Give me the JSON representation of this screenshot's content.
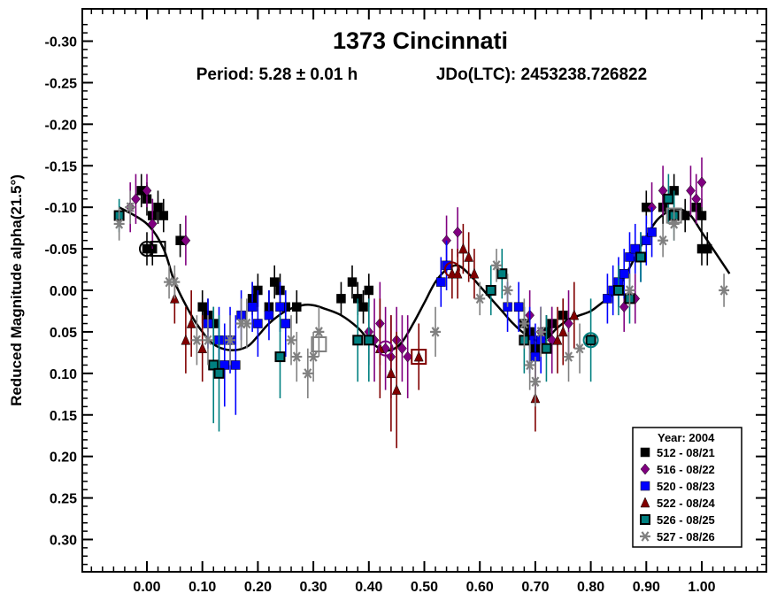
{
  "chart_data": {
    "type": "scatter",
    "title": "1373 Cincinnati",
    "subtitle_period": "Period: 5.28 ± 0.01 h",
    "subtitle_epoch": "JDo(LTC): 2453238.726822",
    "ylabel": "Reduced Magnitude alpha(21.5°)",
    "xlabel": "",
    "xlim": [
      -0.12,
      1.12
    ],
    "ylim": [
      -0.32,
      0.34
    ],
    "y_inverted": true,
    "grid": false,
    "x_ticks": [
      "0.00",
      "0.10",
      "0.20",
      "0.30",
      "0.40",
      "0.50",
      "0.60",
      "0.70",
      "0.80",
      "0.90",
      "1.00"
    ],
    "y_ticks": [
      "-0.30",
      "-0.25",
      "-0.20",
      "-0.15",
      "-0.10",
      "-0.05",
      "0.00",
      "0.05",
      "0.10",
      "0.15",
      "0.20",
      "0.25",
      "0.30"
    ],
    "legend_title": "Year: 2004",
    "legend_position": "bottom-right",
    "series": [
      {
        "name": "512 - 08/21",
        "marker": "square",
        "color": "#000000",
        "points": [
          [
            -0.01,
            -0.12
          ],
          [
            0.0,
            -0.11
          ],
          [
            0.01,
            -0.09
          ],
          [
            0.02,
            -0.1
          ],
          [
            0.03,
            -0.09
          ],
          [
            0.0,
            -0.05
          ],
          [
            0.01,
            -0.05
          ],
          [
            0.06,
            -0.06
          ],
          [
            0.1,
            0.02
          ],
          [
            0.11,
            0.03
          ],
          [
            0.12,
            0.04
          ],
          [
            0.19,
            0.01
          ],
          [
            0.2,
            0.0
          ],
          [
            0.22,
            0.02
          ],
          [
            0.23,
            -0.01
          ],
          [
            0.24,
            0.0
          ],
          [
            0.25,
            0.02
          ],
          [
            0.27,
            0.02
          ],
          [
            0.35,
            0.01
          ],
          [
            0.37,
            -0.01
          ],
          [
            0.38,
            0.01
          ],
          [
            0.39,
            0.02
          ],
          [
            0.4,
            0.0
          ],
          [
            0.68,
            0.04
          ],
          [
            0.69,
            0.05
          ],
          [
            0.7,
            0.07
          ],
          [
            0.72,
            0.05
          ],
          [
            0.73,
            0.04
          ],
          [
            0.75,
            0.03
          ],
          [
            0.9,
            -0.1
          ],
          [
            0.93,
            -0.1
          ],
          [
            0.95,
            -0.12
          ],
          [
            0.97,
            -0.09
          ],
          [
            0.99,
            -0.1
          ],
          [
            1.0,
            -0.09
          ],
          [
            1.0,
            -0.05
          ],
          [
            1.01,
            -0.05
          ]
        ],
        "errors": [
          0.02,
          0.02,
          0.02,
          0.02,
          0.02,
          0.02,
          0.02,
          0.02,
          0.02,
          0.02,
          0.02,
          0.02,
          0.02,
          0.02,
          0.02,
          0.02,
          0.02,
          0.02,
          0.02,
          0.02,
          0.02,
          0.02,
          0.02,
          0.02,
          0.02,
          0.02,
          0.02,
          0.02,
          0.02,
          0.02,
          0.02,
          0.02,
          0.02,
          0.02,
          0.02,
          0.02,
          0.02
        ]
      },
      {
        "name": "516 - 08/22",
        "marker": "diamond",
        "color": "#800080",
        "points": [
          [
            -0.03,
            -0.1
          ],
          [
            -0.02,
            -0.11
          ],
          [
            0.0,
            -0.12
          ],
          [
            0.01,
            -0.08
          ],
          [
            0.07,
            -0.06
          ],
          [
            0.4,
            0.05
          ],
          [
            0.41,
            0.06
          ],
          [
            0.42,
            0.04
          ],
          [
            0.43,
            0.07
          ],
          [
            0.44,
            0.08
          ],
          [
            0.45,
            0.06
          ],
          [
            0.46,
            0.07
          ],
          [
            0.47,
            0.08
          ],
          [
            0.54,
            -0.06
          ],
          [
            0.56,
            -0.07
          ],
          [
            0.69,
            0.03
          ],
          [
            0.71,
            0.05
          ],
          [
            0.73,
            0.06
          ],
          [
            0.76,
            0.04
          ],
          [
            0.86,
            0.02
          ],
          [
            0.88,
            0.01
          ],
          [
            0.91,
            -0.1
          ],
          [
            0.93,
            -0.12
          ],
          [
            0.98,
            -0.12
          ],
          [
            0.99,
            -0.11
          ],
          [
            1.0,
            -0.13
          ]
        ],
        "errors": [
          0.03,
          0.03,
          0.02,
          0.03,
          0.03,
          0.04,
          0.05,
          0.05,
          0.05,
          0.05,
          0.04,
          0.04,
          0.05,
          0.03,
          0.03,
          0.03,
          0.03,
          0.04,
          0.04,
          0.03,
          0.03,
          0.03,
          0.03,
          0.03,
          0.03,
          0.03
        ]
      },
      {
        "name": "520 - 08/23",
        "marker": "square",
        "color": "#0000ff",
        "points": [
          [
            0.11,
            0.04
          ],
          [
            0.13,
            0.06
          ],
          [
            0.14,
            0.09
          ],
          [
            0.15,
            0.06
          ],
          [
            0.16,
            0.09
          ],
          [
            0.17,
            0.03
          ],
          [
            0.19,
            0.02
          ],
          [
            0.2,
            0.04
          ],
          [
            0.22,
            0.03
          ],
          [
            0.24,
            0.02
          ],
          [
            0.25,
            0.04
          ],
          [
            0.53,
            -0.01
          ],
          [
            0.54,
            -0.03
          ],
          [
            0.65,
            0.02
          ],
          [
            0.67,
            0.02
          ],
          [
            0.69,
            0.06
          ],
          [
            0.7,
            0.08
          ],
          [
            0.71,
            0.06
          ],
          [
            0.83,
            0.01
          ],
          [
            0.84,
            0.0
          ],
          [
            0.85,
            -0.01
          ],
          [
            0.86,
            -0.02
          ],
          [
            0.87,
            -0.04
          ],
          [
            0.88,
            -0.05
          ],
          [
            0.89,
            -0.04
          ],
          [
            0.9,
            -0.06
          ],
          [
            0.91,
            -0.07
          ]
        ],
        "errors": [
          0.03,
          0.04,
          0.05,
          0.04,
          0.06,
          0.03,
          0.03,
          0.04,
          0.03,
          0.03,
          0.04,
          0.03,
          0.03,
          0.03,
          0.03,
          0.04,
          0.04,
          0.04,
          0.03,
          0.03,
          0.03,
          0.03,
          0.03,
          0.03,
          0.03,
          0.03,
          0.03
        ]
      },
      {
        "name": "522 - 08/24",
        "marker": "triangle",
        "color": "#800000",
        "points": [
          [
            0.05,
            0.01
          ],
          [
            0.07,
            0.06
          ],
          [
            0.08,
            0.04
          ],
          [
            0.1,
            0.07
          ],
          [
            0.42,
            0.07
          ],
          [
            0.44,
            0.1
          ],
          [
            0.45,
            0.12
          ],
          [
            0.49,
            0.08
          ],
          [
            0.55,
            -0.02
          ],
          [
            0.56,
            -0.02
          ],
          [
            0.57,
            -0.05
          ],
          [
            0.58,
            -0.04
          ],
          [
            0.59,
            -0.02
          ],
          [
            0.7,
            0.13
          ],
          [
            0.74,
            0.06
          ],
          [
            0.75,
            0.05
          ],
          [
            0.77,
            0.03
          ]
        ],
        "errors": [
          0.03,
          0.04,
          0.04,
          0.04,
          0.06,
          0.07,
          0.07,
          0.04,
          0.03,
          0.03,
          0.03,
          0.03,
          0.03,
          0.04,
          0.04,
          0.04,
          0.04
        ]
      },
      {
        "name": "526 - 08/25",
        "marker": "square-outline",
        "color": "#008080",
        "points": [
          [
            -0.05,
            -0.09
          ],
          [
            0.12,
            0.09
          ],
          [
            0.13,
            0.1
          ],
          [
            0.24,
            0.08
          ],
          [
            0.38,
            0.06
          ],
          [
            0.4,
            0.06
          ],
          [
            0.62,
            0.0
          ],
          [
            0.64,
            -0.02
          ],
          [
            0.68,
            0.06
          ],
          [
            0.72,
            0.07
          ],
          [
            0.8,
            0.06
          ],
          [
            0.85,
            0.0
          ],
          [
            0.87,
            0.01
          ],
          [
            0.89,
            -0.04
          ],
          [
            0.94,
            -0.11
          ],
          [
            0.95,
            -0.09
          ]
        ],
        "errors": [
          0.02,
          0.07,
          0.07,
          0.05,
          0.05,
          0.05,
          0.03,
          0.03,
          0.04,
          0.04,
          0.05,
          0.03,
          0.03,
          0.03,
          0.03,
          0.03
        ]
      },
      {
        "name": "527 - 08/26",
        "marker": "asterisk",
        "color": "#808080",
        "points": [
          [
            -0.05,
            -0.08
          ],
          [
            -0.03,
            -0.1
          ],
          [
            0.04,
            -0.01
          ],
          [
            0.05,
            -0.01
          ],
          [
            0.09,
            0.06
          ],
          [
            0.11,
            0.06
          ],
          [
            0.15,
            0.06
          ],
          [
            0.17,
            0.04
          ],
          [
            0.18,
            0.04
          ],
          [
            0.26,
            0.06
          ],
          [
            0.27,
            0.08
          ],
          [
            0.29,
            0.1
          ],
          [
            0.3,
            0.08
          ],
          [
            0.31,
            0.05
          ],
          [
            0.52,
            0.05
          ],
          [
            0.6,
            0.01
          ],
          [
            0.63,
            -0.03
          ],
          [
            0.65,
            0.0
          ],
          [
            0.68,
            0.04
          ],
          [
            0.69,
            0.09
          ],
          [
            0.7,
            0.11
          ],
          [
            0.71,
            0.05
          ],
          [
            0.76,
            0.08
          ],
          [
            0.78,
            0.07
          ],
          [
            0.87,
            0.0
          ],
          [
            0.93,
            -0.06
          ],
          [
            0.95,
            -0.08
          ],
          [
            1.04,
            0.0
          ]
        ],
        "errors": [
          0.02,
          0.02,
          0.02,
          0.02,
          0.03,
          0.03,
          0.03,
          0.03,
          0.03,
          0.03,
          0.03,
          0.03,
          0.03,
          0.03,
          0.03,
          0.02,
          0.02,
          0.02,
          0.03,
          0.03,
          0.03,
          0.03,
          0.03,
          0.03,
          0.02,
          0.02,
          0.02,
          0.02
        ]
      }
    ],
    "fit_curve": {
      "x": [
        -0.05,
        0.0,
        0.03,
        0.05,
        0.08,
        0.1,
        0.12,
        0.15,
        0.18,
        0.2,
        0.22,
        0.25,
        0.28,
        0.3,
        0.32,
        0.35,
        0.38,
        0.4,
        0.42,
        0.44,
        0.46,
        0.48,
        0.5,
        0.52,
        0.54,
        0.56,
        0.58,
        0.6,
        0.62,
        0.64,
        0.66,
        0.68,
        0.7,
        0.72,
        0.74,
        0.76,
        0.78,
        0.8,
        0.82,
        0.84,
        0.86,
        0.88,
        0.9,
        0.92,
        0.94,
        0.96,
        0.98,
        1.0,
        1.02,
        1.05
      ],
      "y": [
        -0.1,
        -0.08,
        -0.05,
        -0.01,
        0.03,
        0.05,
        0.065,
        0.072,
        0.068,
        0.055,
        0.04,
        0.025,
        0.018,
        0.018,
        0.022,
        0.03,
        0.045,
        0.06,
        0.07,
        0.072,
        0.062,
        0.04,
        0.015,
        -0.01,
        -0.025,
        -0.03,
        -0.02,
        -0.005,
        0.01,
        0.025,
        0.04,
        0.052,
        0.06,
        0.058,
        0.045,
        0.035,
        0.03,
        0.025,
        0.015,
        0.005,
        -0.015,
        -0.04,
        -0.065,
        -0.085,
        -0.095,
        -0.098,
        -0.09,
        -0.07,
        -0.05,
        -0.02
      ]
    },
    "open_markers": [
      {
        "shape": "circle",
        "color": "#000000",
        "x": 0.0,
        "y": -0.05
      },
      {
        "shape": "square",
        "color": "#000000",
        "x": 0.02,
        "y": -0.05
      },
      {
        "shape": "square",
        "color": "#808080",
        "x": 0.31,
        "y": 0.065
      },
      {
        "shape": "circle",
        "color": "#800080",
        "x": 0.43,
        "y": 0.07
      },
      {
        "shape": "square",
        "color": "#800000",
        "x": 0.49,
        "y": 0.08
      },
      {
        "shape": "circle",
        "color": "#800000",
        "x": 0.55,
        "y": -0.025
      },
      {
        "shape": "circle",
        "color": "#008080",
        "x": 0.8,
        "y": 0.06
      },
      {
        "shape": "square",
        "color": "#808080",
        "x": 0.95,
        "y": -0.09
      }
    ]
  }
}
